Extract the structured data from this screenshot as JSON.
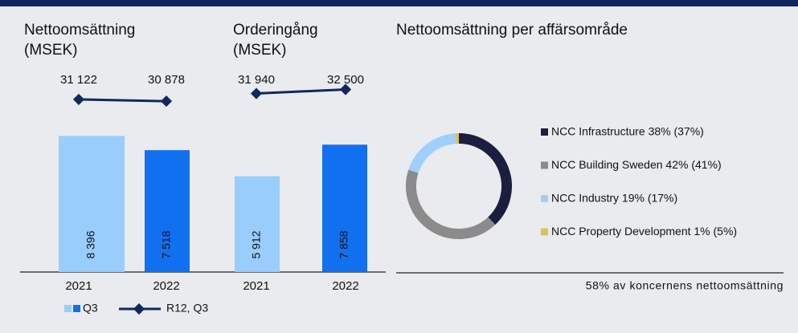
{
  "chart_data": [
    {
      "type": "bar_line",
      "title": [
        "Nettoomsättning",
        "(MSEK)"
      ],
      "categories": [
        "2021",
        "2022"
      ],
      "series": [
        {
          "name": "Q3",
          "colors": [
            "#99cdfb",
            "#1170f0"
          ],
          "values": [
            8396,
            7518
          ],
          "value_labels": [
            "8 396",
            "7 518"
          ]
        },
        {
          "name": "R12, Q3",
          "type": "line",
          "color": "#11285e",
          "values": [
            31122,
            30878
          ],
          "value_labels": [
            "31 122",
            "30 878"
          ]
        }
      ]
    },
    {
      "type": "bar_line",
      "title": [
        "Orderingång",
        "(MSEK)"
      ],
      "categories": [
        "2021",
        "2022"
      ],
      "series": [
        {
          "name": "Q3",
          "colors": [
            "#99cdfb",
            "#1170f0"
          ],
          "values": [
            5912,
            7858
          ],
          "value_labels": [
            "5 912",
            "7 858"
          ]
        },
        {
          "name": "R12, Q3",
          "type": "line",
          "color": "#11285e",
          "values": [
            31940,
            32500
          ],
          "value_labels": [
            "31 940",
            "32 500"
          ]
        }
      ]
    },
    {
      "type": "donut",
      "title": "Nettoomsättning per affärsområde",
      "categories": [
        "NCC Infrastructure 38% (37%)",
        "NCC Building Sweden 42% (41%)",
        "NCC Industry 19% (17%)",
        "NCC Property Development 1% (5%)"
      ],
      "values": [
        38,
        42,
        19,
        1
      ],
      "colors": [
        "#1b1f3f",
        "#8b8b8b",
        "#9fd0fb",
        "#dfc055"
      ],
      "annotation": "58% av koncernens nettoomsättning"
    }
  ]
}
